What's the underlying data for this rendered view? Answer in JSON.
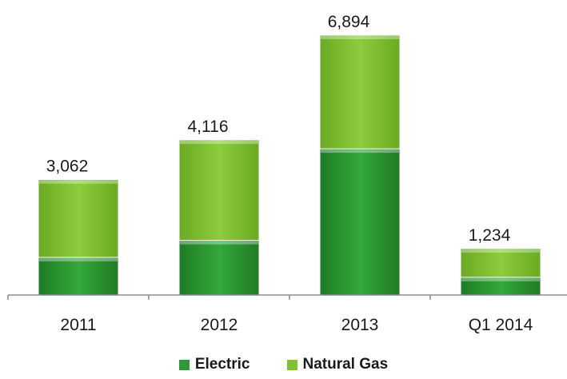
{
  "chart_data": {
    "type": "bar",
    "stacked": true,
    "categories": [
      "2011",
      "2012",
      "2013",
      "Q1 2014"
    ],
    "series": [
      {
        "name": "Electric",
        "values": [
          1000,
          1450,
          3880,
          470
        ],
        "color": "#2e9a35"
      },
      {
        "name": "Natural Gas",
        "values": [
          2062,
          2666,
          3014,
          764
        ],
        "color": "#80c232"
      }
    ],
    "totals": [
      3062,
      4116,
      6894,
      1234
    ],
    "total_labels": [
      "3,062",
      "4,116",
      "6,894",
      "1,234"
    ],
    "ylim": [
      0,
      7000
    ],
    "legend_position": "bottom",
    "grid": false
  }
}
